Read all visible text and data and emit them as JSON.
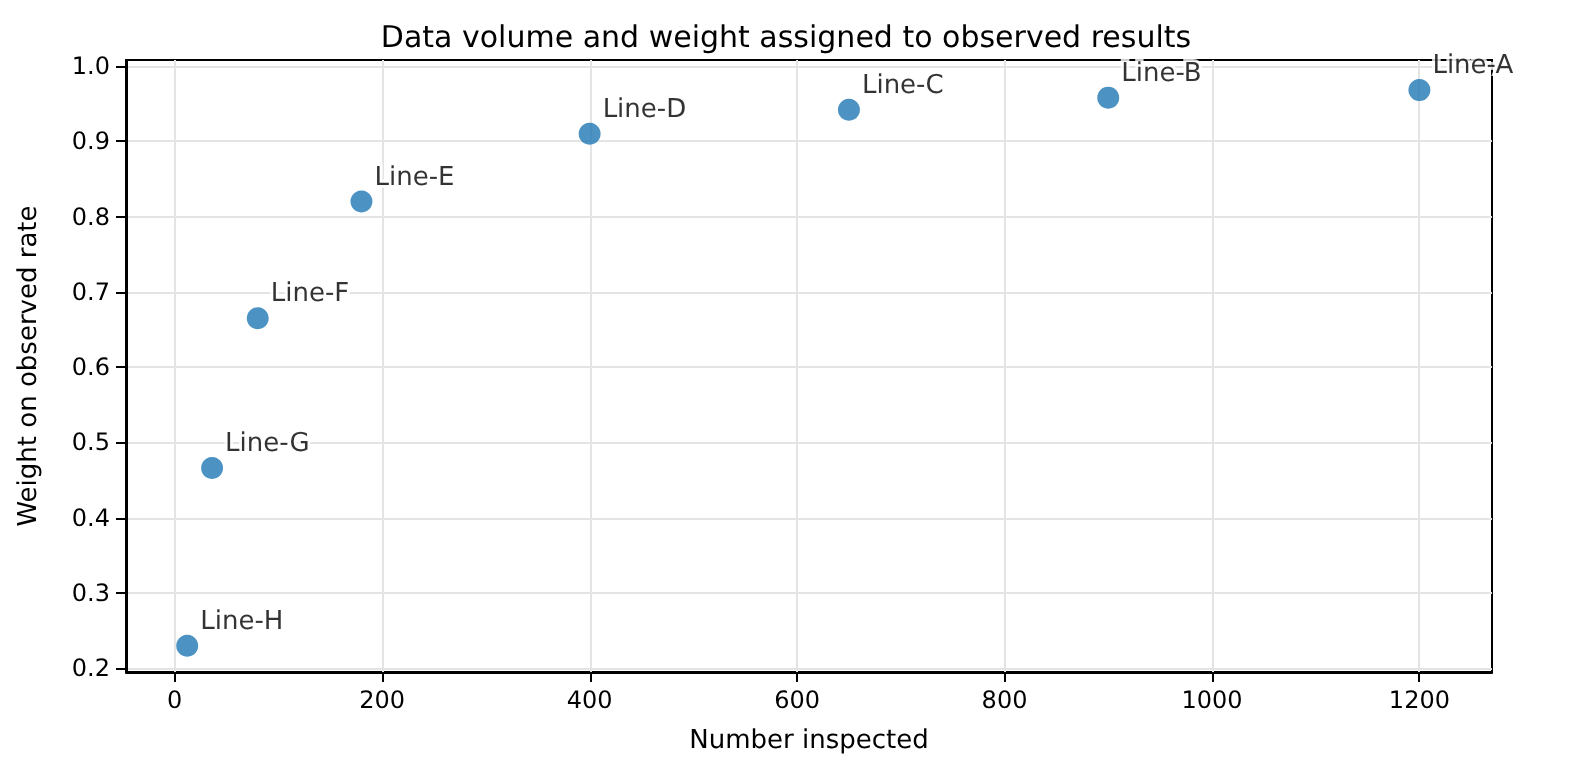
{
  "chart_data": {
    "type": "scatter",
    "title": "Data volume and weight assigned to observed results",
    "xlabel": "Number inspected",
    "ylabel": "Weight on observed rate",
    "x": [
      1200,
      900,
      650,
      400,
      180,
      80,
      36,
      12
    ],
    "values": [
      0.968,
      0.958,
      0.942,
      0.91,
      0.82,
      0.665,
      0.466,
      0.23
    ],
    "color": "#1f77b4",
    "marker": "circle",
    "xlim": [
      -47,
      1270
    ],
    "xticks": [
      0,
      200,
      400,
      600,
      800,
      1000,
      1200
    ],
    "ylim": [
      0.195,
      1.008
    ],
    "yticks": [
      0.2,
      0.3,
      0.4,
      0.5,
      0.6,
      0.7,
      0.8,
      0.9,
      {
        "value": 1.0,
        "label": "1.0"
      }
    ],
    "grid": true,
    "annotations": [
      {
        "text": "Line-A",
        "x": 1200,
        "y": 0.968
      },
      {
        "text": "Line-B",
        "x": 900,
        "y": 0.958
      },
      {
        "text": "Line-C",
        "x": 650,
        "y": 0.942
      },
      {
        "text": "Line-D",
        "x": 400,
        "y": 0.91
      },
      {
        "text": "Line-E",
        "x": 180,
        "y": 0.82
      },
      {
        "text": "Line-F",
        "x": 80,
        "y": 0.665
      },
      {
        "text": "Line-G",
        "x": 36,
        "y": 0.466
      },
      {
        "text": "Line-H",
        "x": 12,
        "y": 0.23
      }
    ]
  }
}
